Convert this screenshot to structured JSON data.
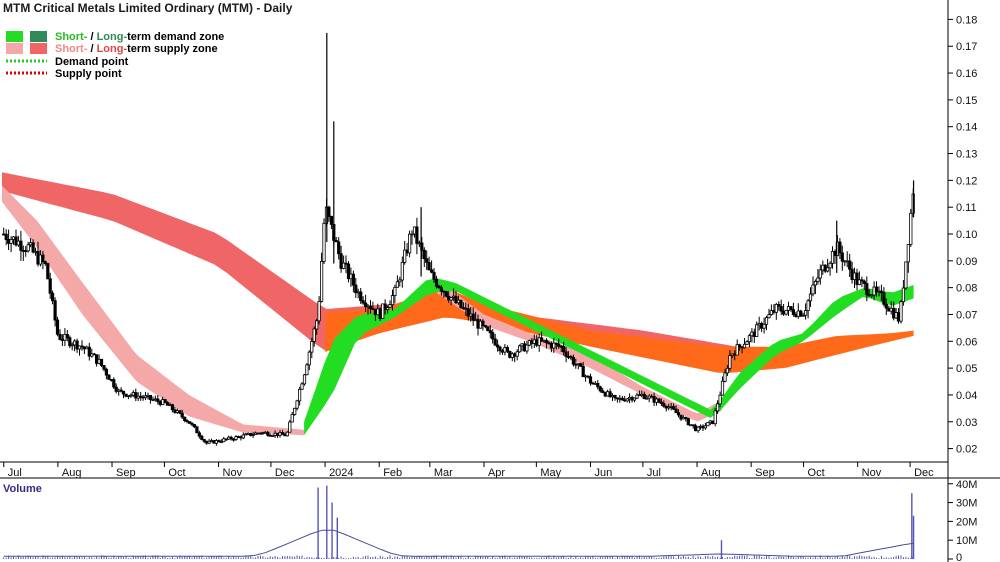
{
  "chart_data": {
    "type": "candlestick",
    "title": "MTM Critical Metals Limited Ordinary (MTM) - Daily",
    "legend": {
      "demand_zone": {
        "short": "Short-",
        "sep": " / ",
        "long": "Long-",
        "rest": "term demand zone"
      },
      "supply_zone": {
        "short": "Short-",
        "sep": " / ",
        "long": "Long-",
        "rest": "term supply zone"
      },
      "demand_point": "Demand point",
      "supply_point": "Supply point"
    },
    "colors": {
      "short_demand": "#22dd22",
      "long_demand": "#2e8b57",
      "short_supply": "#f4a8a8",
      "long_supply": "#f06666",
      "orange_zone": "#ff6a1a",
      "demand_point": "#22cc22",
      "supply_point": "#dd0000",
      "volume_bar": "#5555bb",
      "volume_line": "#4a4a9a",
      "candle": "#000000"
    },
    "y_axis": {
      "ylim": [
        0.015,
        0.185
      ],
      "ticks": [
        "0.02",
        "0.03",
        "0.04",
        "0.05",
        "0.06",
        "0.07",
        "0.08",
        "0.09",
        "0.10",
        "0.11",
        "0.12",
        "0.13",
        "0.14",
        "0.15",
        "0.16",
        "0.17",
        "0.18"
      ]
    },
    "x_axis": {
      "start": "2023-06-30",
      "end": "2023-12-10",
      "tick_labels": [
        {
          "label": "Jul",
          "date": "2023-07-01"
        },
        {
          "label": "Aug",
          "date": "2023-08-01"
        },
        {
          "label": "Sep",
          "date": "2023-09-01"
        },
        {
          "label": "Oct",
          "date": "2023-10-01"
        },
        {
          "label": "Nov",
          "date": "2023-11-01"
        },
        {
          "label": "Dec",
          "date": "2023-12-01"
        },
        {
          "label": "2024",
          "date": "2024-01-01"
        },
        {
          "label": "Feb",
          "date": "2024-02-01"
        },
        {
          "label": "Mar",
          "date": "2024-03-01"
        },
        {
          "label": "Apr",
          "date": "2024-04-01"
        },
        {
          "label": "May",
          "date": "2024-05-01"
        },
        {
          "label": "Jun",
          "date": "2024-06-01"
        },
        {
          "label": "Jul",
          "date": "2024-07-01"
        },
        {
          "label": "Aug",
          "date": "2024-08-01"
        },
        {
          "label": "Sep",
          "date": "2024-09-01"
        },
        {
          "label": "Oct",
          "date": "2024-10-01"
        },
        {
          "label": "Nov",
          "date": "2024-11-01"
        },
        {
          "label": "Dec",
          "date": "2024-12-01"
        }
      ]
    },
    "price_path": [
      [
        "2023-07-01",
        0.1
      ],
      [
        "2023-07-15",
        0.095
      ],
      [
        "2023-07-25",
        0.088
      ],
      [
        "2023-08-01",
        0.062
      ],
      [
        "2023-08-15",
        0.058
      ],
      [
        "2023-08-25",
        0.052
      ],
      [
        "2023-09-05",
        0.041
      ],
      [
        "2023-09-20",
        0.039
      ],
      [
        "2023-10-01",
        0.037
      ],
      [
        "2023-10-15",
        0.03
      ],
      [
        "2023-10-25",
        0.022
      ],
      [
        "2023-11-10",
        0.024
      ],
      [
        "2023-11-25",
        0.026
      ],
      [
        "2023-12-10",
        0.025
      ],
      [
        "2023-12-20",
        0.048
      ],
      [
        "2023-12-28",
        0.07
      ],
      [
        "2024-01-01",
        0.11
      ],
      [
        "2024-01-10",
        0.09
      ],
      [
        "2024-01-20",
        0.078
      ],
      [
        "2024-02-01",
        0.07
      ],
      [
        "2024-02-10",
        0.078
      ],
      [
        "2024-02-20",
        0.102
      ],
      [
        "2024-03-01",
        0.085
      ],
      [
        "2024-03-15",
        0.075
      ],
      [
        "2024-03-31",
        0.065
      ],
      [
        "2024-04-15",
        0.055
      ],
      [
        "2024-05-01",
        0.06
      ],
      [
        "2024-05-15",
        0.058
      ],
      [
        "2024-06-01",
        0.045
      ],
      [
        "2024-06-15",
        0.038
      ],
      [
        "2024-07-01",
        0.04
      ],
      [
        "2024-07-15",
        0.036
      ],
      [
        "2024-08-01",
        0.027
      ],
      [
        "2024-08-10",
        0.03
      ],
      [
        "2024-08-20",
        0.055
      ],
      [
        "2024-09-01",
        0.062
      ],
      [
        "2024-09-15",
        0.072
      ],
      [
        "2024-10-01",
        0.071
      ],
      [
        "2024-10-10",
        0.085
      ],
      [
        "2024-10-20",
        0.095
      ],
      [
        "2024-11-01",
        0.082
      ],
      [
        "2024-11-15",
        0.076
      ],
      [
        "2024-11-25",
        0.068
      ],
      [
        "2024-12-01",
        0.105
      ],
      [
        "2024-12-03",
        0.118
      ]
    ],
    "spikes": [
      {
        "date": "2024-01-02",
        "high": 0.175
      },
      {
        "date": "2024-01-06",
        "high": 0.142
      },
      {
        "date": "2024-02-25",
        "high": 0.11
      },
      {
        "date": "2024-10-20",
        "high": 0.105
      },
      {
        "date": "2024-12-03",
        "high": 0.12
      }
    ],
    "long_supply_band": [
      [
        "2023-06-30",
        0.123,
        0.116
      ],
      [
        "2023-09-01",
        0.115,
        0.105
      ],
      [
        "2023-11-01",
        0.1,
        0.088
      ],
      [
        "2024-01-01",
        0.072,
        0.056
      ],
      [
        "2024-03-01",
        0.075,
        0.072
      ],
      [
        "2024-05-01",
        0.069,
        0.064
      ],
      [
        "2024-07-01",
        0.064,
        0.058
      ],
      [
        "2024-08-15",
        0.059,
        0.049
      ],
      [
        "2024-09-01",
        0.057,
        0.053
      ]
    ],
    "short_supply_band": [
      [
        "2023-06-30",
        0.118,
        0.112
      ],
      [
        "2023-07-20",
        0.105,
        0.095
      ],
      [
        "2023-08-15",
        0.082,
        0.07
      ],
      [
        "2023-09-15",
        0.055,
        0.045
      ],
      [
        "2023-10-15",
        0.04,
        0.032
      ],
      [
        "2023-11-15",
        0.029,
        0.026
      ],
      [
        "2023-12-20",
        0.027,
        0.025
      ],
      [
        "2024-03-05",
        0.083,
        0.078
      ],
      [
        "2024-04-01",
        0.07,
        0.066
      ],
      [
        "2024-05-01",
        0.062,
        0.059
      ],
      [
        "2024-06-01",
        0.055,
        0.05
      ],
      [
        "2024-07-01",
        0.043,
        0.04
      ],
      [
        "2024-08-01",
        0.033,
        0.03
      ],
      [
        "2024-08-15",
        0.038,
        0.034
      ]
    ],
    "short_demand_band": [
      [
        "2023-12-20",
        0.03,
        0.025
      ],
      [
        "2024-01-05",
        0.06,
        0.04
      ],
      [
        "2024-01-20",
        0.07,
        0.062
      ],
      [
        "2024-02-10",
        0.072,
        0.069
      ],
      [
        "2024-03-01",
        0.084,
        0.078
      ],
      [
        "2024-03-15",
        0.082,
        0.079
      ],
      [
        "2024-08-10",
        0.034,
        0.031
      ],
      [
        "2024-08-25",
        0.048,
        0.042
      ],
      [
        "2024-09-15",
        0.06,
        0.055
      ],
      [
        "2024-10-01",
        0.063,
        0.06
      ],
      [
        "2024-10-20",
        0.076,
        0.07
      ],
      [
        "2024-11-05",
        0.08,
        0.077
      ],
      [
        "2024-11-20",
        0.078,
        0.073
      ],
      [
        "2024-12-03",
        0.081,
        0.076
      ]
    ],
    "orange_band": [
      [
        "2024-01-01",
        0.071,
        0.056
      ],
      [
        "2024-02-01",
        0.072,
        0.063
      ],
      [
        "2024-03-10",
        0.08,
        0.069
      ],
      [
        "2024-04-01",
        0.074,
        0.067
      ],
      [
        "2024-06-01",
        0.064,
        0.058
      ],
      [
        "2024-08-15",
        0.058,
        0.048
      ],
      [
        "2024-09-20",
        0.058,
        0.05
      ],
      [
        "2024-10-20",
        0.062,
        0.055
      ],
      [
        "2024-11-20",
        0.063,
        0.06
      ],
      [
        "2024-12-03",
        0.064,
        0.062
      ]
    ],
    "volume": {
      "title": "Volume",
      "ylim": [
        0,
        42000000
      ],
      "ticks": [
        "0",
        "10M",
        "20M",
        "30M",
        "40M"
      ],
      "peaks": [
        {
          "date": "2023-12-28",
          "value": 38000000
        },
        {
          "date": "2024-01-02",
          "value": 39000000
        },
        {
          "date": "2024-01-05",
          "value": 30000000
        },
        {
          "date": "2024-01-08",
          "value": 22000000
        },
        {
          "date": "2024-08-15",
          "value": 10000000
        },
        {
          "date": "2024-12-02",
          "value": 35000000
        },
        {
          "date": "2024-12-03",
          "value": 23000000
        }
      ]
    }
  }
}
